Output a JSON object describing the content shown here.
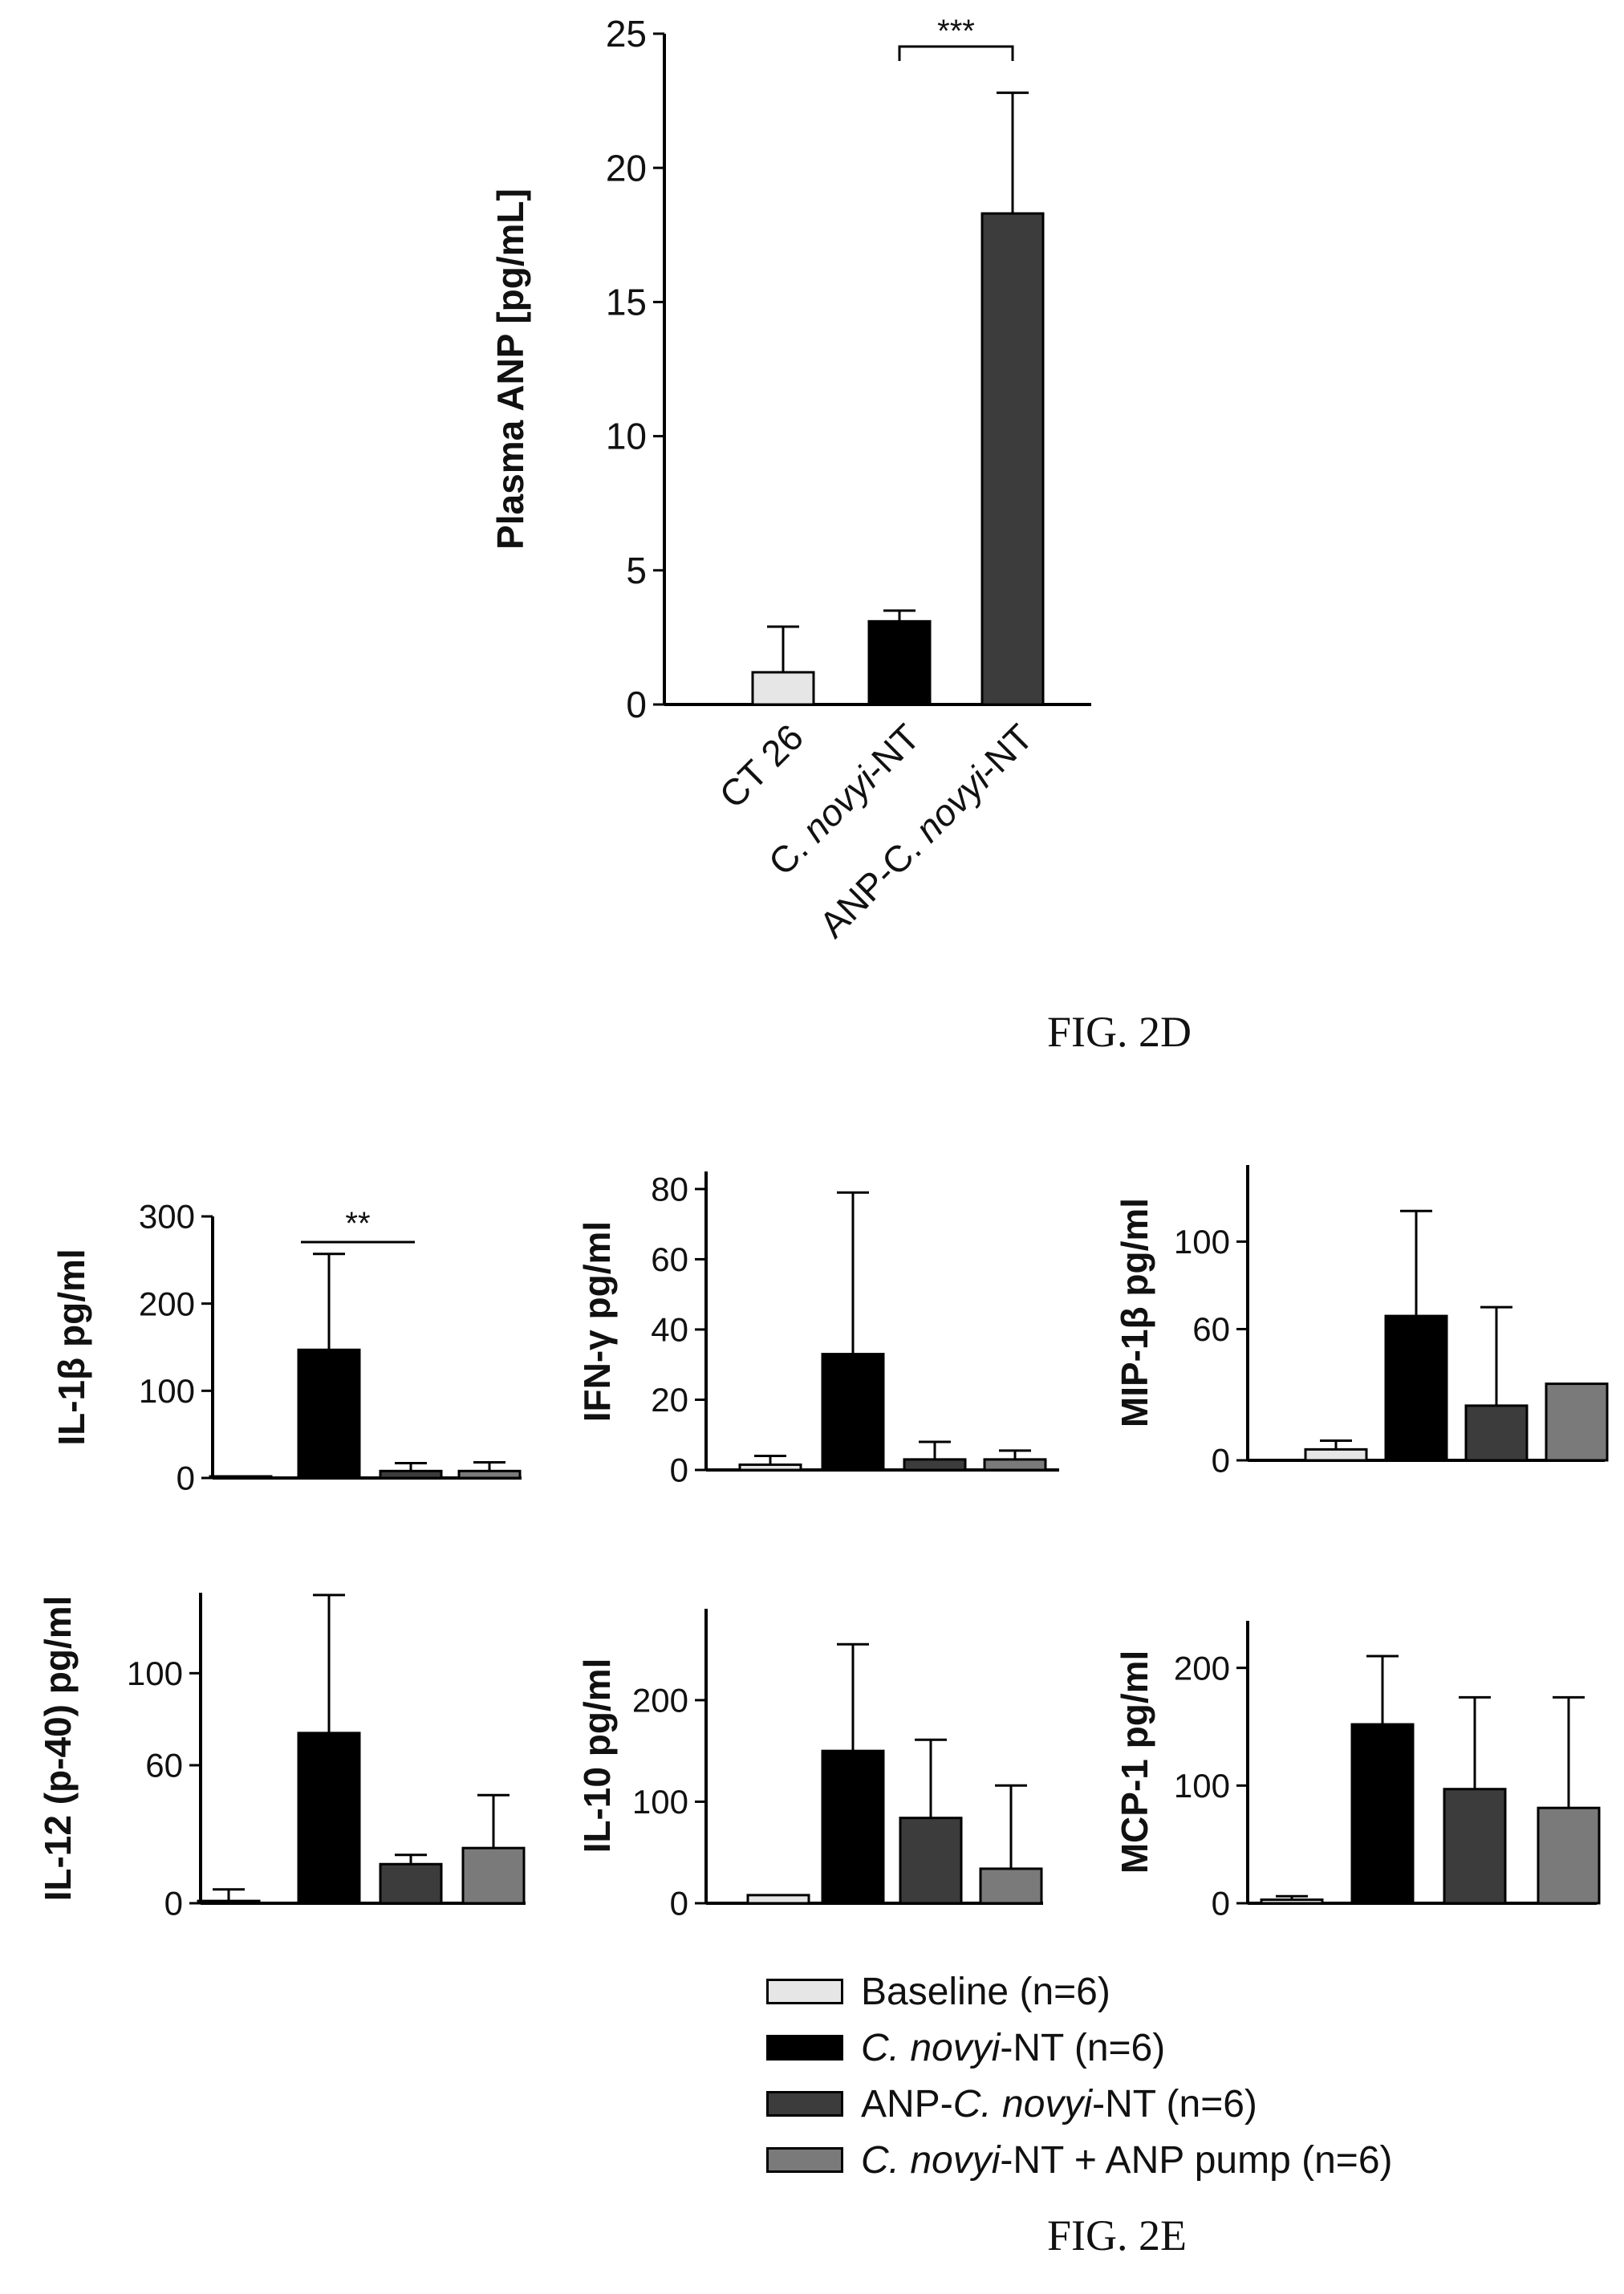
{
  "figures": {
    "fig_2d_caption": "FIG. 2D",
    "fig_2e_caption": "FIG. 2E"
  },
  "legend": [
    {
      "pre": "Baseline (n=6)",
      "italic": "",
      "post": "",
      "color": "#e6e6e6"
    },
    {
      "pre": "",
      "italic": "C. novyi",
      "post": "-NT (n=6)",
      "color": "#000000"
    },
    {
      "pre": "ANP-",
      "italic": "C. novyi",
      "post": "-NT (n=6)",
      "color": "#3c3c3c"
    },
    {
      "pre": "",
      "italic": "C. novyi",
      "post": "-NT + ANP pump (n=6)",
      "color": "#7a7a7a"
    }
  ],
  "chart_data": [
    {
      "id": "anp",
      "type": "bar",
      "ylabel": "Plasma ANP [pg/mL]",
      "ylim": [
        0,
        25
      ],
      "yticks": [
        0,
        5,
        10,
        15,
        20,
        25
      ],
      "categories": [
        "CT 26",
        "C. novyi-NT",
        "ANP-C. novyi-NT"
      ],
      "category_parts": [
        {
          "pre": "CT 26",
          "italic": "",
          "post": ""
        },
        {
          "pre": "C. ",
          "italic": "novyi",
          "post": "-NT"
        },
        {
          "pre": "ANP-C. ",
          "italic": "novyi",
          "post": "-NT"
        }
      ],
      "values": [
        1.2,
        3.1,
        18.3
      ],
      "errors": [
        1.7,
        0.4,
        4.5
      ],
      "colors": [
        "#e6e6e6",
        "#000000",
        "#3c3c3c"
      ],
      "significance": [
        {
          "from": 1,
          "to": 2,
          "label": "***"
        }
      ]
    },
    {
      "id": "il1b",
      "type": "bar",
      "ylabel": "IL-1β pg/ml",
      "ylim": [
        0,
        300
      ],
      "yticks": [
        0,
        100,
        200,
        300
      ],
      "series_names": [
        "Baseline (n=6)",
        "C. novyi-NT (n=6)",
        "ANP-C. novyi-NT (n=6)",
        "C. novyi-NT + ANP pump (n=6)"
      ],
      "values": [
        1,
        147,
        8,
        8
      ],
      "errors": [
        0,
        110,
        9,
        10
      ],
      "significance": [
        {
          "from": 1,
          "to": 2,
          "label": "**"
        }
      ]
    },
    {
      "id": "ifng",
      "type": "bar",
      "ylabel": "IFN-γ pg/ml",
      "ylim": [
        0,
        85
      ],
      "yticks": [
        0,
        20,
        40,
        60,
        80
      ],
      "values": [
        1.5,
        33,
        3,
        3
      ],
      "errors": [
        2.5,
        46,
        5,
        2.5
      ]
    },
    {
      "id": "mip1b",
      "type": "bar",
      "ylabel": "MIP-1β pg/ml",
      "ylim": [
        0,
        135
      ],
      "yticks": [
        0,
        60,
        100
      ],
      "values": [
        5,
        66,
        25,
        35
      ],
      "errors": [
        4,
        48,
        45,
        0
      ]
    },
    {
      "id": "il12",
      "type": "bar",
      "ylabel": "IL-12 (p-40) pg/ml",
      "ylim": [
        0,
        135
      ],
      "yticks": [
        0,
        60,
        100
      ],
      "values": [
        1,
        74,
        17,
        24
      ],
      "errors": [
        5,
        60,
        4,
        23
      ]
    },
    {
      "id": "il10",
      "type": "bar",
      "ylabel": "IL-10 pg/ml",
      "ylim": [
        0,
        290
      ],
      "yticks": [
        0,
        100,
        200
      ],
      "values": [
        8,
        150,
        84,
        34
      ],
      "errors": [
        0,
        105,
        77,
        82
      ]
    },
    {
      "id": "mcp1",
      "type": "bar",
      "ylabel": "MCP-1 pg/ml",
      "ylim": [
        0,
        240
      ],
      "yticks": [
        0,
        100,
        200
      ],
      "values": [
        3,
        152,
        97,
        81
      ],
      "errors": [
        3,
        58,
        78,
        94
      ]
    }
  ]
}
